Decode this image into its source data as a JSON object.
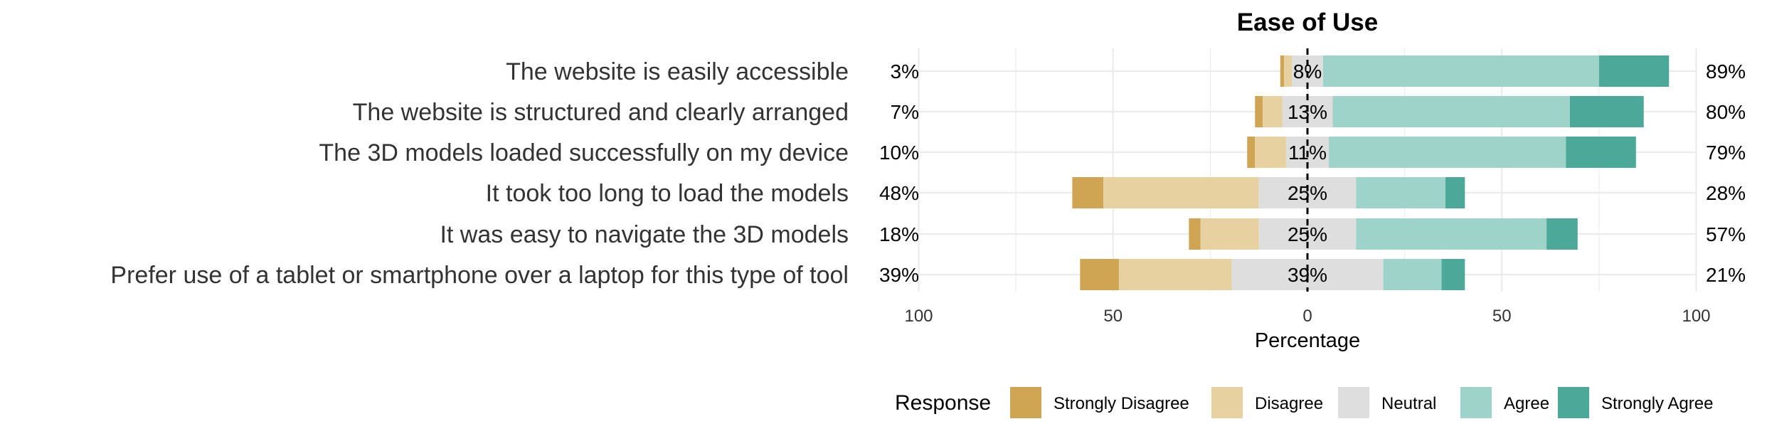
{
  "chart_data": {
    "type": "bar",
    "orientation": "horizontal",
    "stacked": "diverging",
    "title": "Ease of Use",
    "xlabel": "Percentage",
    "ylabel": "",
    "xlim": [
      -100,
      100
    ],
    "x_ticks": [
      -100,
      -50,
      0,
      50,
      100
    ],
    "x_tick_labels": [
      "100",
      "50",
      "0",
      "50",
      "100"
    ],
    "grid": true,
    "legend": {
      "title": "Response",
      "position": "bottom"
    },
    "response_levels": [
      "Strongly Disagree",
      "Disagree",
      "Neutral",
      "Agree",
      "Strongly Agree"
    ],
    "colors": {
      "Strongly Disagree": "#CFA553",
      "Disagree": "#E8D1A0",
      "Neutral": "#DEDEDE",
      "Agree": "#9ED3CA",
      "Strongly Agree": "#4CA899"
    },
    "categories": [
      "The website is easily accessible",
      "The website is structured and clearly arranged",
      "The 3D models loaded successfully on my device",
      "It took too long to load the models",
      "It was easy to navigate the 3D models",
      "Prefer use of a tablet or smartphone over a laptop for this type of tool"
    ],
    "series": [
      {
        "name": "Strongly Disagree",
        "values": [
          1,
          2,
          2,
          8,
          3,
          10
        ]
      },
      {
        "name": "Disagree",
        "values": [
          2,
          5,
          8,
          40,
          15,
          29
        ]
      },
      {
        "name": "Neutral",
        "values": [
          8,
          13,
          11,
          25,
          25,
          39
        ]
      },
      {
        "name": "Agree",
        "values": [
          71,
          61,
          61,
          23,
          49,
          15
        ]
      },
      {
        "name": "Strongly Agree",
        "values": [
          18,
          19,
          18,
          5,
          8,
          6
        ]
      }
    ],
    "left_labels": [
      "3%",
      "7%",
      "10%",
      "48%",
      "18%",
      "39%"
    ],
    "center_labels": [
      "8%",
      "13%",
      "11%",
      "25%",
      "25%",
      "39%"
    ],
    "right_labels": [
      "89%",
      "80%",
      "79%",
      "28%",
      "57%",
      "21%"
    ]
  }
}
